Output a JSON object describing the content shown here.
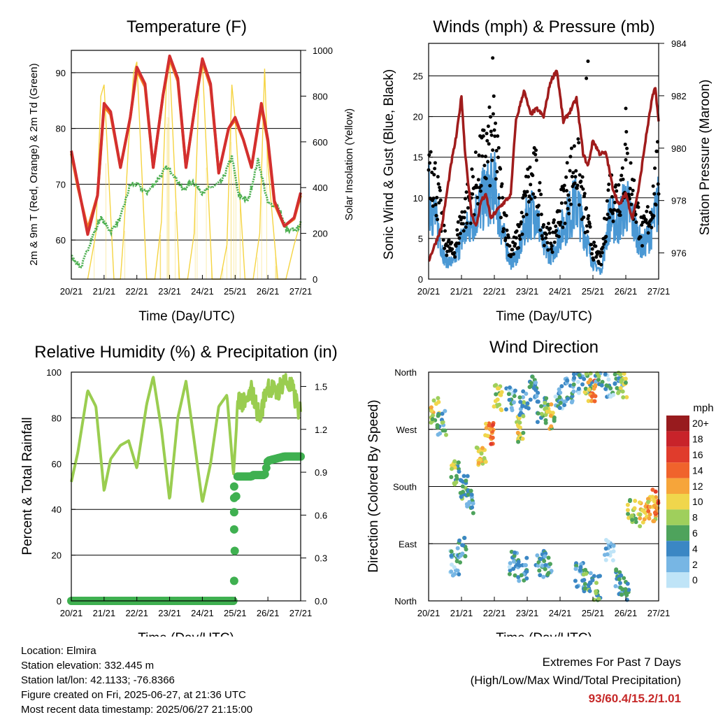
{
  "x_ticks": [
    "20/21",
    "21/21",
    "22/21",
    "23/21",
    "24/21",
    "25/21",
    "26/21",
    "27/21"
  ],
  "x_label": "Time (Day/UTC)",
  "info": {
    "location": "Location: Elmira",
    "elevation": "Station elevation: 332.445 m",
    "latlon": "Station lat/lon: 42.1133; -76.8366",
    "created": "Figure created on Fri, 2025-06-27, at 21:36 UTC",
    "recent": "Most recent data timestamp: 2025/06/27 21:15:00"
  },
  "extremes": {
    "title": "Extremes For Past 7 Days",
    "subtitle": "(High/Low/Max Wind/Total Precipitation)",
    "values": "93/60.4/15.2/1.01"
  },
  "colors": {
    "temp2m": "#d32f2f",
    "temp9m": "#f57c20",
    "dewpoint": "#4caf50",
    "solar": "#f5d442",
    "gust": "#000000",
    "wind": "#4a98d4",
    "pressure": "#a01c1c",
    "rh": "#9acd50",
    "precip": "#3fb050"
  },
  "chart_data": [
    {
      "type": "line",
      "title": "Temperature (F)",
      "xlabel": "Time (Day/UTC)",
      "ylabel": "2m & 9m T (Red, Orange) & 2m Td (Green)",
      "ylabel_right": "Solar Insolation (Yellow)",
      "ylim": [
        53,
        94
      ],
      "yticks": [
        60,
        70,
        80,
        90
      ],
      "ylim_right": [
        0,
        1000
      ],
      "yticks_right": [
        0,
        200,
        400,
        600,
        800,
        1000
      ],
      "xlim": [
        0,
        7
      ],
      "series": [
        {
          "x": [
            0,
            0.2,
            0.5,
            0.8,
            1.0,
            1.2,
            1.5,
            1.8,
            2.0,
            2.25,
            2.5,
            2.8,
            3.0,
            3.25,
            3.5,
            3.8,
            4.0,
            4.25,
            4.5,
            4.8,
            5.0,
            5.25,
            5.5,
            5.8,
            6.0,
            6.2,
            6.5,
            6.8,
            7.0
          ],
          "values": [
            76,
            70,
            61,
            68,
            84.5,
            83,
            73,
            82,
            91,
            88,
            73,
            86,
            93,
            89,
            73,
            85,
            92.5,
            88,
            72,
            80,
            82,
            78,
            73,
            84.5,
            78,
            67,
            62.5,
            64,
            68.5
          ]
        },
        {
          "x": [
            0,
            0.2,
            0.5,
            0.8,
            1.0,
            1.2,
            1.5,
            1.8,
            2.0,
            2.25,
            2.5,
            2.8,
            3.0,
            3.25,
            3.5,
            3.8,
            4.0,
            4.25,
            4.5,
            4.8,
            5.0,
            5.25,
            5.5,
            5.8,
            6.0,
            6.2,
            6.5,
            6.8,
            7.0
          ],
          "values": [
            75.5,
            69.5,
            62,
            68,
            84,
            82.5,
            73,
            82,
            90.5,
            87.5,
            73,
            86,
            92.5,
            88.5,
            73,
            85,
            92,
            87.5,
            72,
            80,
            81.5,
            78,
            73,
            84,
            77.5,
            66.5,
            62.5,
            63.8,
            68
          ]
        },
        {
          "x": [
            0,
            0.3,
            0.6,
            0.9,
            1.2,
            1.5,
            1.8,
            2.0,
            2.3,
            2.6,
            2.9,
            3.1,
            3.4,
            3.7,
            4.0,
            4.3,
            4.6,
            4.9,
            5.1,
            5.4,
            5.7,
            6.0,
            6.3,
            6.6,
            6.9,
            7.0
          ],
          "values": [
            57,
            55,
            60,
            64,
            61.5,
            64,
            70,
            70,
            68.5,
            70.5,
            73,
            72,
            69,
            70.5,
            68.5,
            69.5,
            70.5,
            75,
            68,
            67,
            74.5,
            66.5,
            66,
            61.5,
            62,
            63
          ]
        },
        {
          "x": [
            0.5,
            0.75,
            0.9,
            1.0,
            1.3,
            1.5,
            1.6,
            1.75,
            1.9,
            2.0,
            2.3,
            2.55,
            2.75,
            2.9,
            3.0,
            3.3,
            3.55,
            3.75,
            3.9,
            4.0,
            4.3,
            4.55,
            4.75,
            4.9,
            5.0,
            5.3,
            5.55,
            5.75,
            5.9,
            6.0,
            6.3,
            6.55,
            6.8,
            6.9,
            7.0
          ],
          "values": [
            0,
            200,
            800,
            850,
            0,
            0,
            200,
            600,
            900,
            950,
            0,
            0,
            250,
            850,
            950,
            0,
            0,
            200,
            850,
            950,
            0,
            0,
            150,
            850,
            700,
            0,
            0,
            200,
            920,
            500,
            0,
            0,
            150,
            200,
            250
          ]
        }
      ]
    },
    {
      "type": "scatter",
      "title": "Winds (mph) & Pressure (mb)",
      "xlabel": "Time (Day/UTC)",
      "ylabel": "Sonic Wind & Gust (Blue, Black)",
      "ylabel_right": "Station Pressure (Maroon)",
      "ylim": [
        0,
        29
      ],
      "yticks": [
        0,
        5,
        10,
        15,
        20,
        25
      ],
      "ylim_right": [
        975,
        984
      ],
      "yticks_right": [
        976,
        978,
        980,
        982,
        984
      ],
      "xlim": [
        0,
        7
      ],
      "series": [
        {
          "x": [
            0,
            0.25,
            0.5,
            0.75,
            1.0,
            1.25,
            1.5,
            1.75,
            2.0,
            2.25,
            2.5,
            2.75,
            3.0,
            3.25,
            3.5,
            3.75,
            4.0,
            4.25,
            4.5,
            4.75,
            5.0,
            5.25,
            5.5,
            5.75,
            6.0,
            6.25,
            6.5,
            6.75,
            7.0
          ],
          "values": [
            17,
            12,
            5,
            3.5,
            8,
            11,
            14,
            17,
            19,
            10,
            3.5,
            6,
            12,
            14,
            7,
            5,
            9,
            13,
            16,
            9,
            4,
            2.5,
            12,
            11,
            16,
            11,
            6,
            9,
            15
          ]
        },
        {
          "x": [
            0,
            0.25,
            0.5,
            0.75,
            1.0,
            1.25,
            1.5,
            1.75,
            2.0,
            2.25,
            2.5,
            2.75,
            3.0,
            3.25,
            3.5,
            3.75,
            4.0,
            4.25,
            4.5,
            4.75,
            5.0,
            5.25,
            5.5,
            5.75,
            6.0,
            6.25,
            6.5,
            6.75,
            7.0
          ],
          "values": [
            11,
            7,
            2.5,
            2,
            5,
            7,
            9,
            11,
            12,
            6,
            2,
            3.5,
            8,
            9,
            4,
            3,
            6,
            8,
            10,
            6,
            2,
            1,
            8,
            7,
            10,
            7,
            4,
            6,
            10
          ]
        },
        {
          "x": [
            0,
            0.4,
            0.7,
            0.85,
            1.0,
            1.1,
            1.3,
            1.45,
            1.6,
            1.75,
            1.9,
            2.0,
            2.2,
            2.5,
            2.65,
            2.9,
            3.1,
            3.3,
            3.5,
            3.7,
            3.9,
            4.1,
            4.3,
            4.5,
            4.7,
            4.85,
            5.0,
            5.2,
            5.4,
            5.6,
            5.8,
            6.0,
            6.2,
            6.4,
            6.6,
            6.8,
            6.9,
            7.0
          ],
          "values": [
            975.7,
            977,
            979.5,
            980.5,
            982,
            980,
            977.5,
            977,
            978,
            978.2,
            977.3,
            977.5,
            977.8,
            978.2,
            981,
            982.2,
            981.3,
            981.5,
            981.2,
            982.5,
            983,
            981,
            981.4,
            981.9,
            979.8,
            979.3,
            980.3,
            979.8,
            979.8,
            978.5,
            977.8,
            978.3,
            977.3,
            978.5,
            980.3,
            981.9,
            982.3,
            981
          ]
        }
      ]
    },
    {
      "type": "line",
      "title": "Relative Humidity (%) & Precipitation (in)",
      "xlabel": "Time (Day/UTC)",
      "ylabel": "Percent & Total Rainfall",
      "ylim": [
        0,
        100
      ],
      "yticks": [
        0,
        20,
        40,
        60,
        80,
        100
      ],
      "ylim_right": [
        0,
        1.6
      ],
      "yticks_right": [
        "0.0",
        "0.3",
        "0.6",
        "0.9",
        "1.2",
        "1.5"
      ],
      "xlim": [
        0,
        7
      ],
      "series": [
        {
          "x": [
            0,
            0.2,
            0.5,
            0.75,
            1.0,
            1.2,
            1.5,
            1.75,
            2.0,
            2.3,
            2.5,
            2.75,
            3.0,
            3.25,
            3.5,
            3.75,
            4.0,
            4.25,
            4.5,
            4.75,
            4.95,
            5.1,
            5.3,
            5.5,
            5.75,
            6.0,
            6.25,
            6.5,
            6.75,
            7.0
          ],
          "values": [
            52,
            65,
            92,
            85,
            48,
            62,
            68,
            70,
            58,
            86,
            98,
            75,
            44,
            80,
            96,
            70,
            43,
            60,
            85,
            90,
            55,
            90,
            85,
            92,
            80,
            95,
            90,
            97,
            92,
            81
          ]
        },
        {
          "x": [
            0,
            4.95,
            4.97,
            5.0,
            5.05,
            5.5,
            5.55,
            5.9,
            6.0,
            6.5,
            7.0
          ],
          "values": [
            0,
            0,
            0.14,
            0.5,
            0.87,
            0.87,
            0.88,
            0.88,
            0.98,
            1.01,
            1.01
          ]
        }
      ]
    },
    {
      "type": "scatter",
      "title": "Wind Direction",
      "xlabel": "Time (Day/UTC)",
      "ylabel": "Direction (Colored By Speed)",
      "yticks": [
        "North",
        "East",
        "South",
        "West",
        "North"
      ],
      "ylim": [
        0,
        360
      ],
      "xlim": [
        0,
        7
      ],
      "colorbar_title": "mph",
      "colorbar_labels": [
        "20+",
        "18",
        "16",
        "14",
        "12",
        "10",
        "8",
        "6",
        "4",
        "2",
        "0"
      ],
      "colorbar_colors": [
        "#981b1e",
        "#c8232a",
        "#e03c2c",
        "#f0632c",
        "#f6a53a",
        "#f0d64c",
        "#9fcf5c",
        "#4ea35c",
        "#3b87c4",
        "#77b6e4",
        "#bfe4f7"
      ],
      "clusters": [
        {
          "x": 0.2,
          "deg": 300,
          "speed": 9
        },
        {
          "x": 0.4,
          "deg": 280,
          "speed": 5
        },
        {
          "x": 0.8,
          "deg": 200,
          "speed": 7
        },
        {
          "x": 1.1,
          "deg": 180,
          "speed": 6
        },
        {
          "x": 1.3,
          "deg": 155,
          "speed": 4
        },
        {
          "x": 1.6,
          "deg": 230,
          "speed": 10
        },
        {
          "x": 1.85,
          "deg": 260,
          "speed": 13
        },
        {
          "x": 2.1,
          "deg": 320,
          "speed": 8
        },
        {
          "x": 2.5,
          "deg": 320,
          "speed": 3
        },
        {
          "x": 2.75,
          "deg": 270,
          "speed": 9
        },
        {
          "x": 2.9,
          "deg": 310,
          "speed": 5
        },
        {
          "x": 3.2,
          "deg": 335,
          "speed": 4
        },
        {
          "x": 3.45,
          "deg": 300,
          "speed": 5
        },
        {
          "x": 3.7,
          "deg": 290,
          "speed": 9
        },
        {
          "x": 4.0,
          "deg": 320,
          "speed": 3
        },
        {
          "x": 4.3,
          "deg": 330,
          "speed": 4
        },
        {
          "x": 4.55,
          "deg": 345,
          "speed": 3
        },
        {
          "x": 4.85,
          "deg": 345,
          "speed": 7
        },
        {
          "x": 5.0,
          "deg": 330,
          "speed": 13
        },
        {
          "x": 5.2,
          "deg": 355,
          "speed": 5
        },
        {
          "x": 5.5,
          "deg": 340,
          "speed": 3
        },
        {
          "x": 5.8,
          "deg": 350,
          "speed": 4
        },
        {
          "x": 5.9,
          "deg": 340,
          "speed": 9
        },
        {
          "x": 0.8,
          "deg": 60,
          "speed": 3
        },
        {
          "x": 1.0,
          "deg": 80,
          "speed": 4
        },
        {
          "x": 2.6,
          "deg": 60,
          "speed": 3
        },
        {
          "x": 2.85,
          "deg": 50,
          "speed": 4
        },
        {
          "x": 3.4,
          "deg": 60,
          "speed": 3
        },
        {
          "x": 3.6,
          "deg": 55,
          "speed": 4
        },
        {
          "x": 4.6,
          "deg": 40,
          "speed": 3
        },
        {
          "x": 4.8,
          "deg": 30,
          "speed": 5
        },
        {
          "x": 5.1,
          "deg": 20,
          "speed": 6
        },
        {
          "x": 5.5,
          "deg": 80,
          "speed": 2
        },
        {
          "x": 5.8,
          "deg": 30,
          "speed": 4
        },
        {
          "x": 5.95,
          "deg": 10,
          "speed": 6
        },
        {
          "x": 6.2,
          "deg": 140,
          "speed": 8
        },
        {
          "x": 6.5,
          "deg": 135,
          "speed": 10
        },
        {
          "x": 6.8,
          "deg": 145,
          "speed": 11
        },
        {
          "x": 6.95,
          "deg": 155,
          "speed": 13
        }
      ]
    }
  ]
}
